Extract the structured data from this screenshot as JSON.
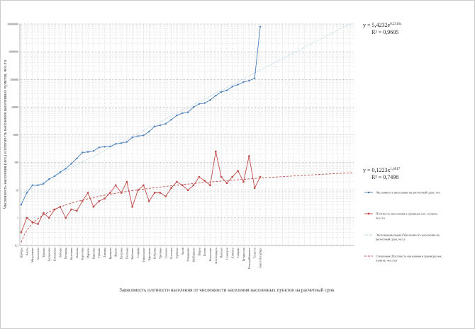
{
  "chart_data": {
    "type": "line",
    "title": "Зависимость плотности населения от численности населения населенных пунктов на расчетный срок",
    "y_label": "Численность населения (чел.) и плотность населения населенных пунктов, чел./га",
    "log_y": true,
    "grid": true,
    "legend": "right",
    "ylim": [
      0.1,
      10000000
    ],
    "yticks": [
      {
        "value": 0.1,
        "label": "0,1"
      },
      1,
      10,
      100,
      1000,
      10000,
      100000,
      1000000,
      10000000
    ],
    "categories": [
      "Шуберы",
      "Ханты",
      "Мусульмане",
      "Алексеево",
      "Уразово",
      "Богдановка",
      "Клюквенка",
      "Зябкино",
      "Песчанка",
      "Калинино",
      "Кожевка",
      "Березовка",
      "Марково",
      "Ивановка",
      "Губкино",
      "Лиховка",
      "Кравцово",
      "Жуково",
      "Петровка",
      "Полтавка",
      "Рубежное",
      "Старица",
      "Никольское",
      "Кирсаново",
      "Бобровка",
      "Урюпино",
      "Снежное",
      "Ольховка",
      "Торбеево",
      "Аксай",
      "Ромашкино",
      "Куйбышево",
      "Шарья",
      "Котово",
      "Ковылкино",
      "Зеленоградск",
      "Павлово",
      "Семилуки",
      "Кимовск",
      "Сызрань",
      "Бугуруслан",
      "Новокуйбышевск",
      "Тольятти",
      "Санкт-Петербург"
    ],
    "series": [
      {
        "name": "Численность населения на расчетный срок, чел",
        "color": "#4a7ebb",
        "values": [
          3,
          8,
          15,
          15,
          17,
          25,
          32,
          45,
          60,
          90,
          140,
          230,
          240,
          260,
          350,
          370,
          380,
          470,
          500,
          550,
          800,
          900,
          950,
          1300,
          2000,
          2200,
          2500,
          3500,
          5000,
          6000,
          6500,
          10000,
          13000,
          14000,
          18000,
          26000,
          35000,
          40000,
          55000,
          65000,
          80000,
          90000,
          110000,
          8000000
        ]
      },
      {
        "name": "Плотность населения в границах нас. пункта, чел./га",
        "color": "#be4b48",
        "values": [
          0.3,
          1,
          0.7,
          0.6,
          1.5,
          1,
          2,
          2.5,
          1,
          2,
          1.8,
          4,
          8,
          2.5,
          4,
          5,
          8,
          15,
          8,
          20,
          2.5,
          10,
          15,
          4,
          8,
          8,
          6,
          12,
          20,
          15,
          10,
          15,
          30,
          22,
          15,
          250,
          30,
          18,
          30,
          50,
          20,
          170,
          12,
          30
        ]
      }
    ],
    "trendlines": [
      {
        "name": "Экспоненциальная (Численность населения на расчетный срок, чел.)",
        "fit": "exponential",
        "color": "#8cc4dc",
        "equation": "y = 5,4232e",
        "equation_exponent": "0,2316x",
        "r2": "R² = 0,9605"
      },
      {
        "name": "Степенная (Плотность населения в границах нас. пункта, чел./га)",
        "fit": "power",
        "color": "#c0504d",
        "equation": "y = 0,1223x",
        "equation_exponent": "1,6917",
        "r2": "R² = 0,7498"
      }
    ]
  }
}
